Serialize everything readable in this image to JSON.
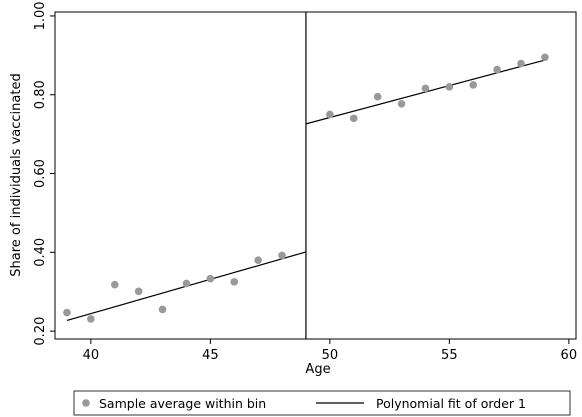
{
  "chart_data": {
    "type": "scatter",
    "title": "",
    "xlabel": "Age",
    "ylabel": "Share of individuals vaccinated",
    "xlim": [
      38.5,
      60.3
    ],
    "ylim": [
      0.18,
      1.01
    ],
    "xticks": [
      40,
      45,
      50,
      55,
      60
    ],
    "yticks": [
      0.2,
      0.4,
      0.6,
      0.8,
      1.0
    ],
    "xtick_labels": [
      "40",
      "45",
      "50",
      "55",
      "60"
    ],
    "ytick_labels": [
      "0.20",
      "0.40",
      "0.60",
      "0.80",
      "1.00"
    ],
    "grid": false,
    "cutoff": 49,
    "series": [
      {
        "name": "Sample average within bin",
        "kind": "scatter",
        "color": "#999999",
        "points": [
          [
            39,
            0.247
          ],
          [
            40,
            0.231
          ],
          [
            41,
            0.318
          ],
          [
            42,
            0.301
          ],
          [
            43,
            0.255
          ],
          [
            44,
            0.321
          ],
          [
            45,
            0.333
          ],
          [
            46,
            0.325
          ],
          [
            47,
            0.38
          ],
          [
            48,
            0.392
          ],
          [
            50,
            0.75
          ],
          [
            51,
            0.74
          ],
          [
            52,
            0.795
          ],
          [
            53,
            0.777
          ],
          [
            54,
            0.816
          ],
          [
            55,
            0.82
          ],
          [
            56,
            0.825
          ],
          [
            57,
            0.864
          ],
          [
            58,
            0.879
          ],
          [
            59,
            0.895
          ]
        ]
      },
      {
        "name": "Polynomial fit of order 1",
        "kind": "line",
        "color": "#000000",
        "segments": [
          [
            [
              39,
              0.227
            ],
            [
              49,
              0.401
            ]
          ],
          [
            [
              49,
              0.726
            ],
            [
              59,
              0.888
            ]
          ]
        ]
      }
    ],
    "legend": {
      "position": "bottom",
      "entries": [
        "Sample average within bin",
        "Polynomial fit of order 1"
      ]
    }
  }
}
